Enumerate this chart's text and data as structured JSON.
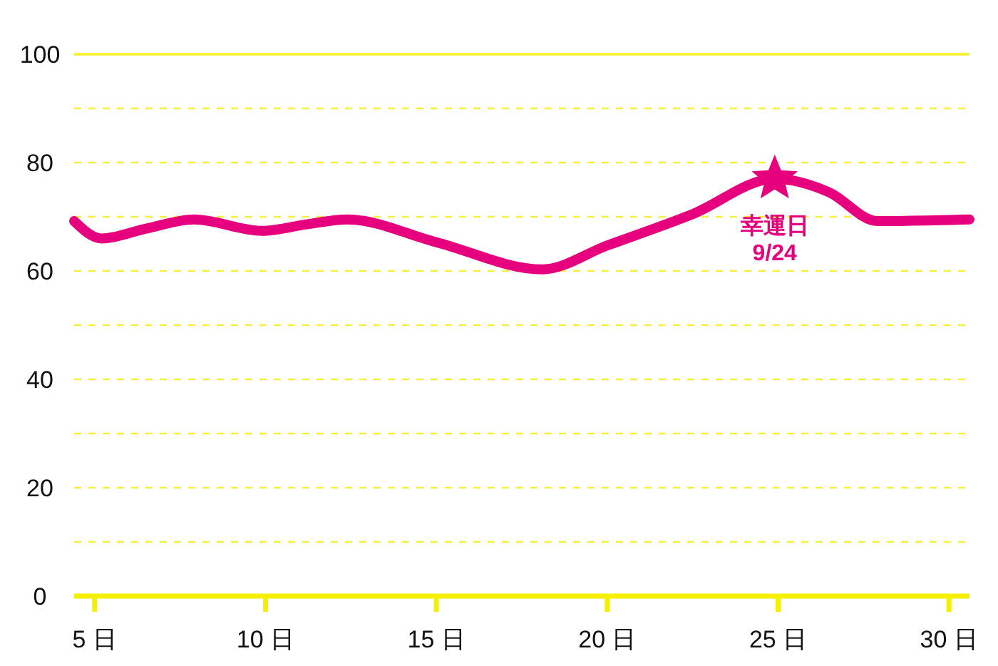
{
  "chart_data": {
    "type": "line",
    "x": [
      4.4,
      5.2,
      6.5,
      7.9,
      9.9,
      11.2,
      12.4,
      15,
      18.1,
      20,
      22.5,
      24.9,
      26.5,
      27.9,
      30.6
    ],
    "series": [
      {
        "color": "#e6007e",
        "values": [
          69.2,
          66,
          67.8,
          69.5,
          67.4,
          68.6,
          69.5,
          65.3,
          60.3,
          64.7,
          70.5,
          77,
          74.5,
          69.2,
          69.5
        ]
      },
      {
        "type": "scatter",
        "marker": "star",
        "color": "#e6007e",
        "x": [
          24.9
        ],
        "values": [
          77
        ]
      }
    ],
    "xlim": [
      4.4,
      30.6
    ],
    "xticks": [
      {
        "value": 5,
        "label": "5 日"
      },
      {
        "value": 10,
        "label": "10 日"
      },
      {
        "value": 15,
        "label": "15 日"
      },
      {
        "value": 20,
        "label": "20 日"
      },
      {
        "value": 25,
        "label": "25 日"
      },
      {
        "value": 30,
        "label": "30 日"
      }
    ],
    "ylim": [
      0,
      100
    ],
    "yticks": [
      0,
      {
        "value": 10,
        "label": null
      },
      20,
      {
        "value": 30,
        "label": null
      },
      40,
      {
        "value": 50,
        "label": null
      },
      60,
      {
        "value": 70,
        "label": null
      },
      80,
      {
        "value": 90,
        "label": null
      },
      100
    ],
    "grid": "y",
    "line_style": "solid",
    "marker": "none",
    "annotations": [
      {
        "text": "幸運日\n9/24",
        "x": 24.9,
        "y": 77
      }
    ]
  }
}
